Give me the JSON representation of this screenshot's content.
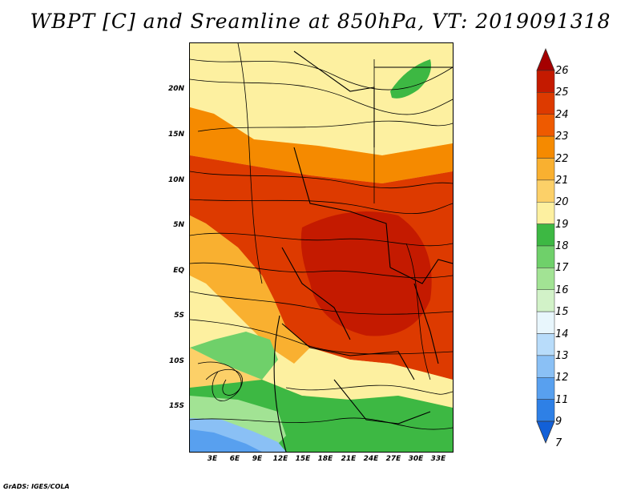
{
  "title": "WBPT [C] and Sreamline at 850hPa, VT: 2019091318",
  "credit": "GrADS: IGES/COLA",
  "lat_labels": [
    "20N",
    "15N",
    "10N",
    "5N",
    "EQ",
    "5S",
    "10S",
    "15S"
  ],
  "lon_labels": [
    "3E",
    "6E",
    "9E",
    "12E",
    "15E",
    "18E",
    "21E",
    "24E",
    "27E",
    "30E",
    "33E"
  ],
  "colorbar": {
    "labels": [
      "26",
      "25",
      "24",
      "23",
      "22",
      "21",
      "20",
      "19",
      "18",
      "17",
      "16",
      "15",
      "14",
      "13",
      "12",
      "11",
      "9",
      "7"
    ],
    "colors": [
      "#a50000",
      "#c41a00",
      "#dd3a00",
      "#ee5a00",
      "#f58a00",
      "#f9b030",
      "#fcd068",
      "#fdf0a0",
      "#3db843",
      "#6fd06a",
      "#a2e394",
      "#d2f2c8",
      "#e8f6fc",
      "#b8dcfa",
      "#8ac0f5",
      "#58a0ef",
      "#2e80e6",
      "#1260d8"
    ]
  }
}
